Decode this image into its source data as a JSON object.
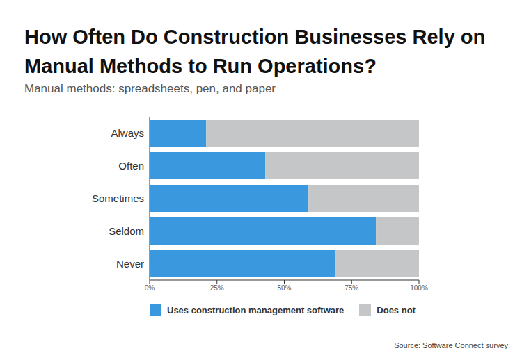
{
  "chart_data": {
    "type": "bar",
    "title": "How Often Do Construction Businesses Rely on Manual Methods to Run Operations?",
    "subtitle": "Manual methods: spreadsheets, pen, and paper",
    "source": "Source: Software Connect survey",
    "orientation": "horizontal",
    "stacked": true,
    "categories": [
      "Always",
      "Often",
      "Sometimes",
      "Seldom",
      "Never"
    ],
    "series": [
      {
        "name": "Uses construction management software",
        "color": "#3a98de",
        "values": [
          21,
          43,
          59,
          84,
          69
        ]
      },
      {
        "name": "Does not",
        "color": "#c4c6c8",
        "values": [
          79,
          57,
          41,
          16,
          31
        ]
      }
    ],
    "xlim": [
      0,
      100
    ],
    "xticks": [
      {
        "value": 0,
        "label": "0%"
      },
      {
        "value": 25,
        "label": "25%"
      },
      {
        "value": 50,
        "label": "50%"
      },
      {
        "value": 75,
        "label": "75%"
      },
      {
        "value": 100,
        "label": "100%"
      }
    ],
    "grid": false,
    "legend": "bottom"
  }
}
